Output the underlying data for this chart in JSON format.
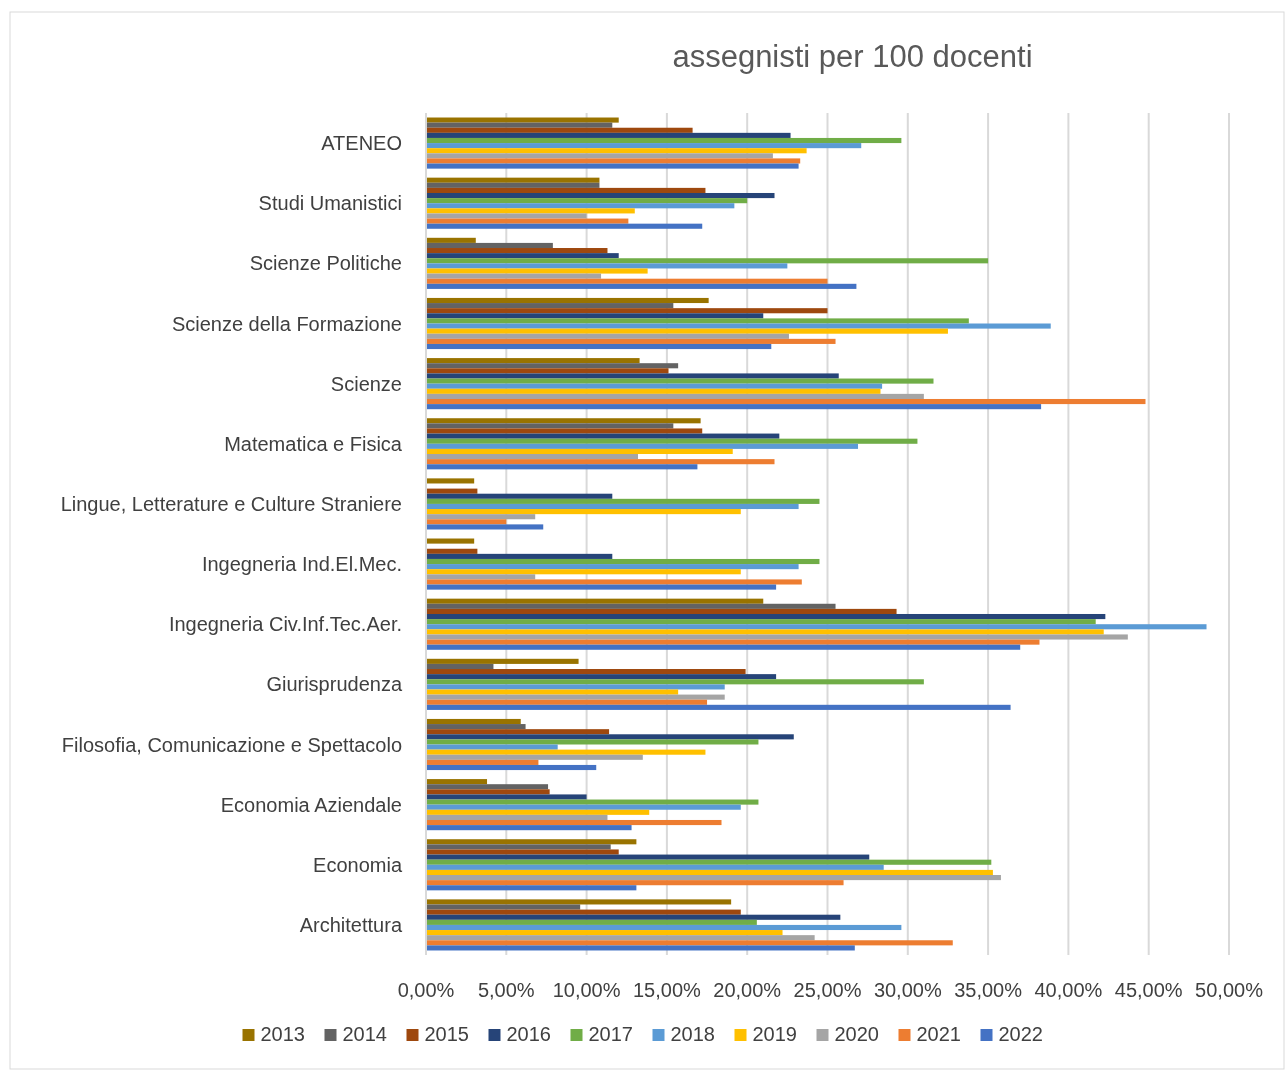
{
  "chart_data": {
    "type": "bar",
    "orientation": "horizontal",
    "title": "assegnisti per 100 docenti",
    "categories": [
      "ATENEO",
      "Studi Umanistici",
      "Scienze Politiche",
      "Scienze della Formazione",
      "Scienze",
      "Matematica e Fisica",
      "Lingue, Letterature e Culture Straniere",
      "Ingegneria Ind.El.Mec.",
      "Ingegneria Civ.Inf.Tec.Aer.",
      "Giurisprudenza",
      "Filosofia, Comunicazione e Spettacolo",
      "Economia Aziendale",
      "Economia",
      "Architettura"
    ],
    "series": [
      {
        "name": "2013",
        "color": "#997300",
        "values": [
          12.0,
          10.8,
          3.1,
          17.6,
          13.3,
          17.1,
          3.0,
          3.0,
          21.0,
          9.5,
          5.9,
          3.8,
          13.1,
          19.0
        ]
      },
      {
        "name": "2014",
        "color": "#636363",
        "values": [
          11.6,
          10.8,
          7.9,
          15.4,
          15.7,
          15.4,
          null,
          null,
          25.5,
          4.2,
          6.2,
          7.6,
          11.5,
          9.6
        ]
      },
      {
        "name": "2015",
        "color": "#9e480e",
        "values": [
          16.6,
          17.4,
          11.3,
          25.0,
          15.1,
          17.2,
          3.2,
          3.2,
          29.3,
          19.9,
          11.4,
          7.7,
          12.0,
          19.6
        ]
      },
      {
        "name": "2016",
        "color": "#264478",
        "values": [
          22.7,
          21.7,
          12.0,
          21.0,
          25.7,
          22.0,
          11.6,
          11.6,
          42.3,
          21.8,
          22.9,
          10.0,
          27.6,
          25.8
        ]
      },
      {
        "name": "2017",
        "color": "#70ad47",
        "values": [
          29.6,
          20.0,
          35.0,
          33.8,
          31.6,
          30.6,
          24.5,
          24.5,
          41.7,
          31.0,
          20.7,
          20.7,
          35.2,
          20.6
        ]
      },
      {
        "name": "2018",
        "color": "#5b9bd5",
        "values": [
          27.1,
          19.2,
          22.5,
          38.9,
          28.4,
          26.9,
          23.2,
          23.2,
          48.6,
          18.6,
          8.2,
          19.6,
          28.5,
          29.6
        ]
      },
      {
        "name": "2019",
        "color": "#ffc000",
        "values": [
          23.7,
          13.0,
          13.8,
          32.5,
          28.3,
          19.1,
          19.6,
          19.6,
          42.2,
          15.7,
          17.4,
          13.9,
          35.3,
          22.2
        ]
      },
      {
        "name": "2020",
        "color": "#a5a5a5",
        "values": [
          21.6,
          10.0,
          10.9,
          22.6,
          31.0,
          13.2,
          6.8,
          6.8,
          43.7,
          18.6,
          13.5,
          11.3,
          35.8,
          24.2
        ]
      },
      {
        "name": "2021",
        "color": "#ed7d31",
        "values": [
          23.3,
          12.6,
          25.0,
          25.5,
          44.8,
          21.7,
          5.0,
          23.4,
          38.2,
          17.5,
          7.0,
          18.4,
          26.0,
          32.8
        ]
      },
      {
        "name": "2022",
        "color": "#4472c4",
        "values": [
          23.2,
          17.2,
          26.8,
          21.5,
          38.3,
          16.9,
          7.3,
          21.8,
          37.0,
          36.4,
          10.6,
          12.8,
          13.1,
          26.7
        ]
      }
    ],
    "xlim": [
      0,
      50
    ],
    "xticks": [
      {
        "value": 0,
        "label": "0,00%"
      },
      {
        "value": 5,
        "label": "5,00%"
      },
      {
        "value": 10,
        "label": "10,00%"
      },
      {
        "value": 15,
        "label": "15,00%"
      },
      {
        "value": 20,
        "label": "20,00%"
      },
      {
        "value": 25,
        "label": "25,00%"
      },
      {
        "value": 30,
        "label": "30,00%"
      },
      {
        "value": 35,
        "label": "35,00%"
      },
      {
        "value": 40,
        "label": "40,00%"
      },
      {
        "value": 45,
        "label": "45,00%"
      },
      {
        "value": 50,
        "label": "50,00%"
      }
    ],
    "grid": "x",
    "legend": "bottom"
  }
}
